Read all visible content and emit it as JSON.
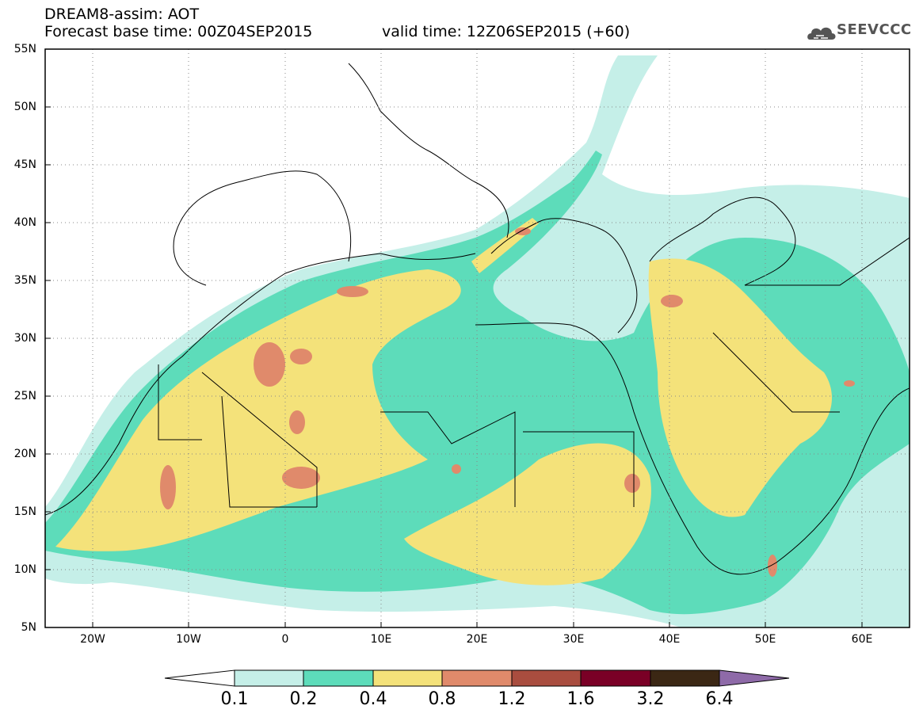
{
  "header": {
    "title": "DREAM8-assim: AOT",
    "base_time": "Forecast base time: 00Z04SEP2015",
    "valid_time": "valid time: 12Z06SEP2015 (+60)",
    "logo_text": "SEEVCCC",
    "logo_icon": "cloud-logo-icon"
  },
  "map": {
    "lon_range": [
      -25,
      65
    ],
    "lat_range": [
      5,
      55
    ],
    "lat_ticks": [
      "5N",
      "10N",
      "15N",
      "20N",
      "25N",
      "30N",
      "35N",
      "40N",
      "45N",
      "50N",
      "55N"
    ],
    "lon_ticks": [
      "20W",
      "10W",
      "0",
      "10E",
      "20E",
      "30E",
      "40E",
      "50E",
      "60E"
    ],
    "grid": "dotted"
  },
  "colorbar": {
    "labels": [
      "0.1",
      "0.2",
      "0.4",
      "0.8",
      "1.2",
      "1.6",
      "3.2",
      "6.4"
    ],
    "colors": [
      "#ffffff",
      "#c5efe8",
      "#5ddcba",
      "#f4e27a",
      "#e08a6b",
      "#a94d3f",
      "#7a0026",
      "#3b2714",
      "#8e6aa8"
    ]
  }
}
